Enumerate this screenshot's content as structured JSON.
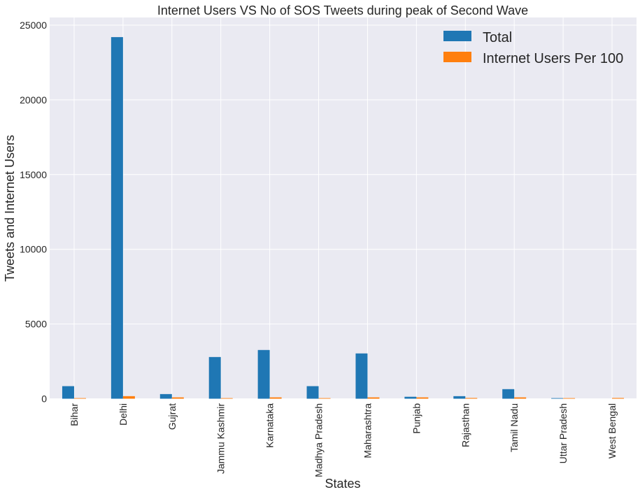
{
  "chart_data": {
    "type": "bar",
    "title": "Internet Users VS  No of SOS Tweets during peak of Second Wave",
    "xlabel": "States",
    "ylabel": "Tweets and Internet Users",
    "ylim": [
      0,
      25500
    ],
    "yticks": [
      0,
      5000,
      10000,
      15000,
      20000,
      25000
    ],
    "grid": true,
    "legend_placement": "top-right",
    "categories": [
      "Bihar",
      "Delhi",
      "Gujrat",
      "Jammu Kashmir",
      "Karnataka",
      "Madhya Pradesh",
      "Maharashtra",
      "Punjab",
      "Rajasthan",
      "Tamil Nadu",
      "Uttar Pradesh",
      "West Bengal"
    ],
    "series": [
      {
        "name": "Total",
        "color": "#1f77b4",
        "values": [
          840,
          24200,
          310,
          2790,
          3260,
          840,
          3030,
          130,
          170,
          640,
          40,
          0
        ]
      },
      {
        "name": "Internet Users Per 100",
        "color": "#ff7f0e",
        "values": [
          40,
          170,
          90,
          40,
          90,
          40,
          90,
          90,
          50,
          90,
          40,
          50
        ]
      }
    ]
  }
}
